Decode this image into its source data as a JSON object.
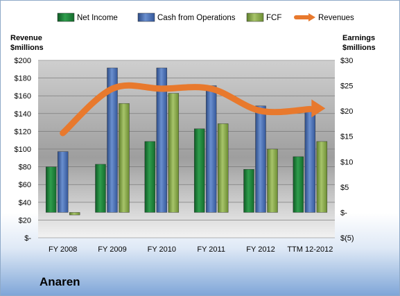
{
  "company": "Anaren",
  "chart_data": {
    "type": "bar",
    "categories": [
      "FY 2008",
      "FY 2009",
      "FY 2010",
      "FY 2011",
      "FY 2012",
      "TTM 12-2012"
    ],
    "series": [
      {
        "name": "Net Income",
        "axis": "right",
        "color": "#1f8a3c",
        "values": [
          9,
          9.5,
          14,
          16.5,
          8.5,
          11
        ]
      },
      {
        "name": "Cash from Operations",
        "axis": "right",
        "color": "#4a6fb0",
        "values": [
          12,
          28.5,
          28.5,
          25,
          21,
          20
        ]
      },
      {
        "name": "FCF",
        "axis": "right",
        "color": "#8aac4c",
        "values": [
          -0.5,
          21.5,
          23.5,
          17.5,
          12.5,
          14
        ]
      },
      {
        "name": "Revenues",
        "axis": "left",
        "type": "line",
        "color": "#e8792d",
        "values": [
          118,
          168,
          168,
          168,
          143,
          145
        ]
      }
    ],
    "ylabel_left": "Revenue\n$millions",
    "ylabel_right": "Earnings\n$millions",
    "ylim_left": [
      0,
      200
    ],
    "ylim_right": [
      -5,
      30
    ],
    "yticks_left": [
      "$200",
      "$180",
      "$160",
      "$140",
      "$120",
      "$100",
      "$80",
      "$60",
      "$40",
      "$20",
      "$-"
    ],
    "yticks_right": [
      "$30",
      "$25",
      "$20",
      "$15",
      "$10",
      "$5",
      "$-",
      "$(5)"
    ],
    "legend_position": "top",
    "grid": true
  }
}
